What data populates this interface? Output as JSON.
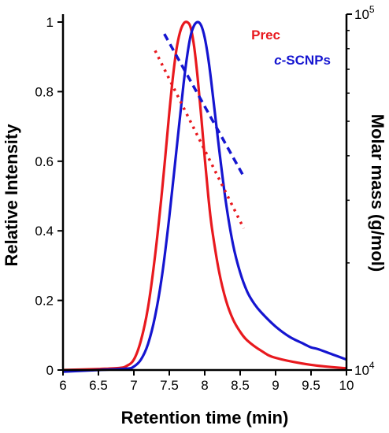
{
  "chart_data": {
    "type": "line",
    "xlabel": "Retention time (min)",
    "ylabel": "Relative Intensity",
    "y2label": "Molar mass (g/mol)",
    "xlim": [
      6,
      10
    ],
    "ylim": [
      0,
      1.0
    ],
    "y2lim": [
      10000,
      100000
    ],
    "y2scale": "log",
    "grid": false,
    "legend_placement": "top-right",
    "x_ticks": [
      "6",
      "6.5",
      "7",
      "7.5",
      "8",
      "8.5",
      "9",
      "9.5",
      "10"
    ],
    "x_tick_values": [
      6,
      6.5,
      7,
      7.5,
      8,
      8.5,
      9,
      9.5,
      10
    ],
    "y_ticks": [
      "0",
      "0.2",
      "0.4",
      "0.6",
      "0.8",
      "1"
    ],
    "y_tick_values": [
      0,
      0.2,
      0.4,
      0.6,
      0.8,
      1.0
    ],
    "y2_ticks": [
      {
        "base": "10",
        "exp": "4"
      },
      {
        "base": "10",
        "exp": "5"
      }
    ],
    "y2_tick_values": [
      10000,
      100000
    ],
    "legend": [
      {
        "prefix": "",
        "italic": "",
        "text": "Prec",
        "color": "#e8191e"
      },
      {
        "prefix": "",
        "italic": "c",
        "text": "-SCNPs",
        "color": "#1515d0"
      }
    ],
    "series": [
      {
        "name": "Prec",
        "color": "#e8191e",
        "x": [
          6.0,
          6.5,
          6.8,
          6.9,
          7.0,
          7.1,
          7.2,
          7.3,
          7.4,
          7.5,
          7.55,
          7.6,
          7.65,
          7.7,
          7.75,
          7.8,
          7.85,
          7.9,
          7.95,
          8.0,
          8.05,
          8.1,
          8.2,
          8.3,
          8.4,
          8.5,
          8.6,
          8.8,
          9.0,
          9.5,
          10.0
        ],
        "y": [
          0.0,
          0.003,
          0.006,
          0.012,
          0.03,
          0.085,
          0.18,
          0.33,
          0.52,
          0.74,
          0.84,
          0.92,
          0.97,
          0.995,
          1.0,
          0.985,
          0.93,
          0.84,
          0.73,
          0.61,
          0.5,
          0.41,
          0.285,
          0.2,
          0.145,
          0.11,
          0.085,
          0.055,
          0.035,
          0.015,
          0.005
        ]
      },
      {
        "name": "c-SCNPs",
        "color": "#1515d0",
        "x": [
          6.0,
          6.5,
          6.9,
          7.0,
          7.1,
          7.2,
          7.3,
          7.4,
          7.5,
          7.6,
          7.7,
          7.75,
          7.8,
          7.85,
          7.9,
          7.95,
          8.0,
          8.05,
          8.1,
          8.2,
          8.3,
          8.4,
          8.5,
          8.6,
          8.7,
          8.8,
          9.0,
          9.2,
          9.4,
          9.5,
          9.6,
          9.8,
          10.0
        ],
        "y": [
          -0.005,
          0.0,
          0.004,
          0.01,
          0.03,
          0.075,
          0.155,
          0.275,
          0.44,
          0.63,
          0.82,
          0.9,
          0.96,
          0.99,
          1.0,
          0.99,
          0.955,
          0.895,
          0.815,
          0.64,
          0.48,
          0.36,
          0.28,
          0.225,
          0.19,
          0.165,
          0.125,
          0.095,
          0.075,
          0.065,
          0.06,
          0.045,
          0.03
        ]
      },
      {
        "name": "Prec molar mass",
        "color": "#e8191e",
        "axis": "y2",
        "style": "dotted",
        "x": [
          7.3,
          8.55
        ],
        "y": [
          79000,
          25000
        ]
      },
      {
        "name": "c-SCNPs molar mass",
        "color": "#1515d0",
        "axis": "y2",
        "style": "dashed",
        "x": [
          7.43,
          8.55
        ],
        "y": [
          88000,
          35000
        ]
      }
    ]
  }
}
